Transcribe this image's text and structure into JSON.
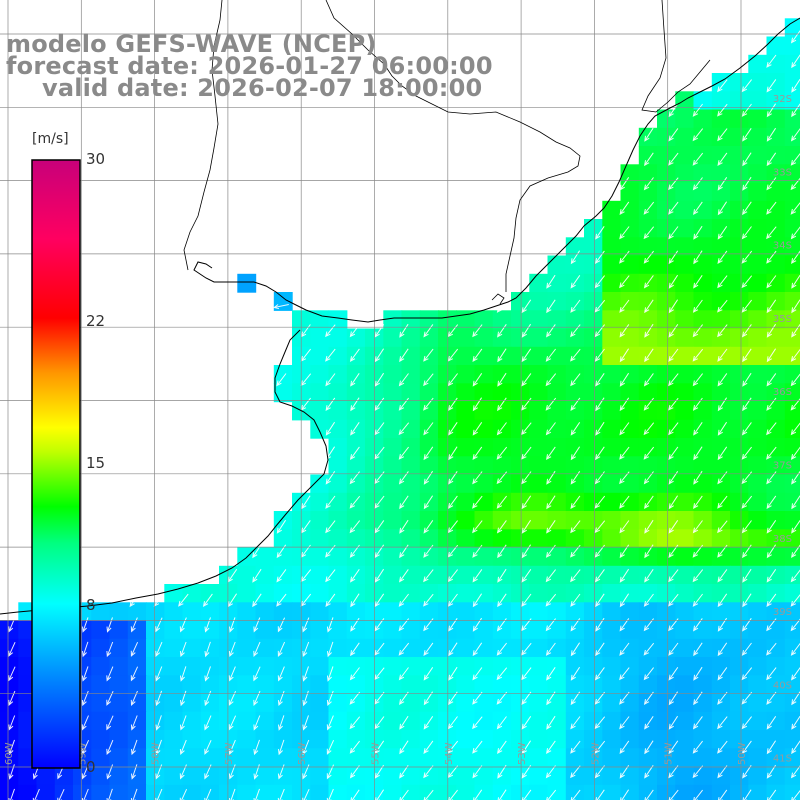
{
  "title": {
    "model": "modelo GEFS-WAVE (NCEP)",
    "forecast": "forecast date: 2026-01-27 06:00:00",
    "valid": "valid date: 2026-02-07 18:00:00"
  },
  "colorbar": {
    "units": "[m/s]",
    "min": 0,
    "max": 30,
    "ticks": [
      {
        "value": 30,
        "label": "30"
      },
      {
        "value": 22,
        "label": "22"
      },
      {
        "value": 15,
        "label": "15"
      },
      {
        "value": 8,
        "label": "8"
      },
      {
        "value": 0,
        "label": "0"
      }
    ]
  },
  "map": {
    "variable": "wind speed",
    "lon_labels": [
      "60W",
      "59W",
      "58W",
      "57W",
      "56W",
      "55W",
      "54W",
      "53W",
      "52W",
      "51W",
      "50W"
    ],
    "lat_labels": [
      "32S",
      "33S",
      "34S",
      "35S",
      "36S",
      "37S",
      "38S",
      "39S",
      "40S",
      "41S"
    ],
    "colors": {
      "land": "#ffffff",
      "coast": "#000000",
      "grid": "#888888",
      "arrow": "#ffffff",
      "label": "#999999"
    }
  }
}
